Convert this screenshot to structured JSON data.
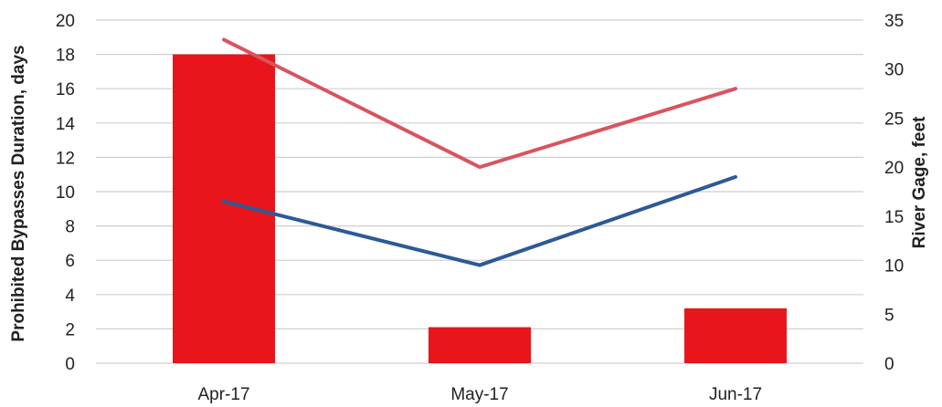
{
  "chart_data": {
    "type": "bar",
    "categories": [
      "Apr-17",
      "May-17",
      "Jun-17"
    ],
    "ylabel": "Prohibited Bypasses Duration, days",
    "y2label": "River Gage, feet",
    "ylim": [
      0,
      20
    ],
    "y2lim": [
      0,
      35
    ],
    "yticks": [
      "0",
      "2",
      "4",
      "6",
      "8",
      "10",
      "12",
      "14",
      "16",
      "18",
      "20"
    ],
    "y2ticks": [
      "0",
      "5",
      "10",
      "15",
      "20",
      "25",
      "30",
      "35"
    ],
    "grid": true,
    "legend": "none",
    "bars": {
      "axis": "left",
      "color": "#e8161b",
      "values": [
        18,
        2.1,
        3.2
      ]
    },
    "lines": [
      {
        "axis": "right",
        "color": "#d9545e",
        "values": [
          33,
          20,
          28
        ]
      },
      {
        "axis": "right",
        "color": "#2d5a95",
        "values": [
          16.5,
          10,
          19
        ]
      }
    ]
  }
}
